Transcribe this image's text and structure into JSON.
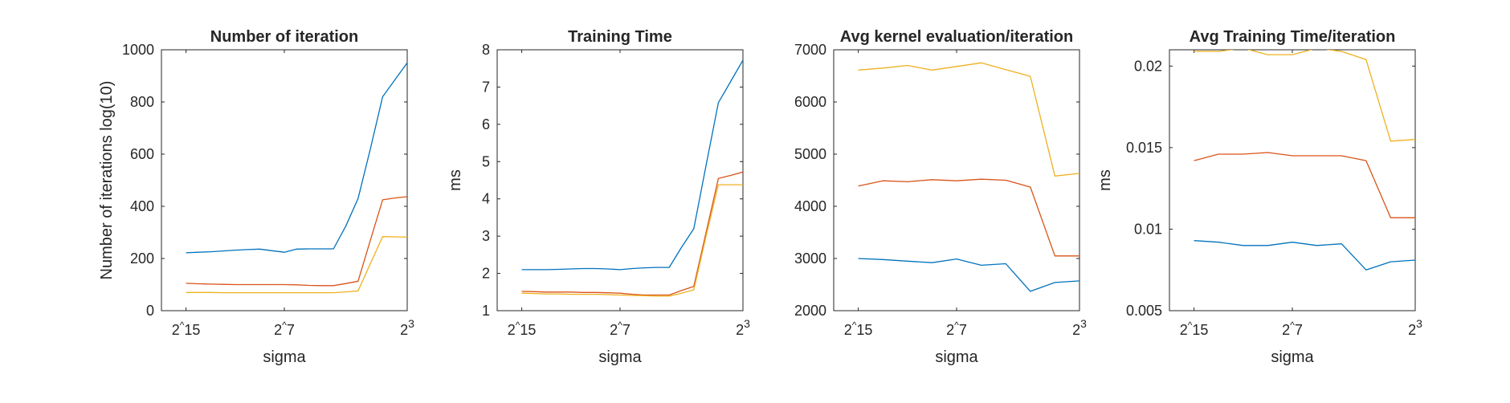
{
  "chart_data": [
    {
      "type": "line",
      "title": "Number of iteration",
      "xlabel": "sigma",
      "ylabel": "Number of iterations log(10)",
      "xlim": [
        -17,
        3
      ],
      "ylim": [
        0,
        1000
      ],
      "yticks": [
        "0",
        "200",
        "400",
        "600",
        "800",
        "1000"
      ],
      "xticks": [
        {
          "value": -15,
          "base": "2",
          "sep": "^",
          "exp": "15",
          "style": "caret"
        },
        {
          "value": -7,
          "base": "2",
          "sep": "^",
          "exp": "7",
          "style": "caret"
        },
        {
          "value": 3,
          "base": "2",
          "exp": "3",
          "style": "superscript"
        }
      ],
      "grid": false,
      "x": [
        -15,
        -14,
        -13,
        -12,
        -11,
        -10,
        -9,
        -8,
        -7,
        -6,
        -5,
        -4,
        -3,
        -2,
        -1,
        0,
        1,
        2,
        3
      ],
      "series": [
        {
          "color": "#0072BD",
          "values": [
            222,
            224,
            226,
            229,
            232,
            234,
            236,
            230,
            224,
            236,
            237,
            237,
            237,
            324,
            430,
            620,
            820,
            885,
            950
          ]
        },
        {
          "color": "#D95319",
          "values": [
            105,
            103,
            102,
            101,
            100,
            100,
            100,
            100,
            100,
            99,
            97,
            96,
            96,
            104,
            113,
            270,
            425,
            432,
            437
          ]
        },
        {
          "color": "#EDB120",
          "values": [
            70,
            70,
            70,
            69,
            69,
            69,
            69,
            69,
            69,
            69,
            69,
            69,
            69,
            72,
            76,
            180,
            284,
            283,
            282
          ]
        }
      ]
    },
    {
      "type": "line",
      "title": "Training Time",
      "xlabel": "sigma",
      "ylabel": "ms",
      "xlim": [
        -17,
        3
      ],
      "ylim": [
        1,
        8
      ],
      "yticks": [
        "1",
        "2",
        "3",
        "4",
        "5",
        "6",
        "7",
        "8"
      ],
      "xticks": [
        {
          "value": -15,
          "base": "2",
          "sep": "^",
          "exp": "15",
          "style": "caret"
        },
        {
          "value": -7,
          "base": "2",
          "sep": "^",
          "exp": "7",
          "style": "caret"
        },
        {
          "value": 3,
          "base": "2",
          "exp": "3",
          "style": "superscript"
        }
      ],
      "grid": false,
      "x": [
        -15,
        -14,
        -13,
        -12,
        -11,
        -10,
        -9,
        -8,
        -7,
        -6,
        -5,
        -4,
        -3,
        -2,
        -1,
        0,
        1,
        2,
        3
      ],
      "series": [
        {
          "color": "#0072BD",
          "values": [
            2.1,
            2.1,
            2.1,
            2.11,
            2.12,
            2.13,
            2.13,
            2.12,
            2.1,
            2.13,
            2.15,
            2.16,
            2.16,
            2.7,
            3.2,
            4.9,
            6.58,
            7.15,
            7.72
          ]
        },
        {
          "color": "#D95319",
          "values": [
            1.52,
            1.51,
            1.5,
            1.5,
            1.5,
            1.49,
            1.49,
            1.48,
            1.47,
            1.44,
            1.42,
            1.42,
            1.42,
            1.54,
            1.65,
            3.1,
            4.55,
            4.63,
            4.72
          ]
        },
        {
          "color": "#EDB120",
          "values": [
            1.47,
            1.46,
            1.45,
            1.45,
            1.44,
            1.44,
            1.44,
            1.43,
            1.42,
            1.41,
            1.4,
            1.39,
            1.39,
            1.47,
            1.56,
            3.0,
            4.38,
            4.38,
            4.38
          ]
        }
      ]
    },
    {
      "type": "line",
      "title": "Avg kernel evaluation/iteration",
      "xlabel": "sigma",
      "ylabel": "",
      "xlim": [
        -17,
        3
      ],
      "ylim": [
        2000,
        7000
      ],
      "yticks": [
        "2000",
        "3000",
        "4000",
        "5000",
        "6000",
        "7000"
      ],
      "xticks": [
        {
          "value": -15,
          "base": "2",
          "sep": "^",
          "exp": "15",
          "style": "caret"
        },
        {
          "value": -7,
          "base": "2",
          "sep": "^",
          "exp": "7",
          "style": "caret"
        },
        {
          "value": 3,
          "base": "2",
          "exp": "3",
          "style": "superscript"
        }
      ],
      "grid": false,
      "x": [
        -15,
        -13,
        -11,
        -9,
        -7,
        -5,
        -3,
        -1,
        1,
        3
      ],
      "series": [
        {
          "color": "#0072BD",
          "values": [
            3000,
            2980,
            2950,
            2920,
            2990,
            2870,
            2900,
            2370,
            2540,
            2570
          ]
        },
        {
          "color": "#D95319",
          "values": [
            4390,
            4490,
            4470,
            4510,
            4490,
            4520,
            4500,
            4370,
            3050,
            3050
          ]
        },
        {
          "color": "#EDB120",
          "values": [
            6610,
            6650,
            6700,
            6610,
            6680,
            6750,
            6620,
            6490,
            4580,
            4630
          ]
        }
      ]
    },
    {
      "type": "line",
      "title": "Avg Training Time/iteration",
      "xlabel": "sigma",
      "ylabel": "ms",
      "xlim": [
        -17,
        3
      ],
      "ylim": [
        0.005,
        0.021
      ],
      "yticks": [
        "0.005",
        "0.01",
        "0.015",
        "0.02"
      ],
      "ytick_values": [
        0.005,
        0.01,
        0.015,
        0.02
      ],
      "xticks": [
        {
          "value": -15,
          "base": "2",
          "sep": "^",
          "exp": "15",
          "style": "caret"
        },
        {
          "value": -7,
          "base": "2",
          "sep": "^",
          "exp": "7",
          "style": "caret"
        },
        {
          "value": 3,
          "base": "2",
          "exp": "3",
          "style": "superscript"
        }
      ],
      "grid": false,
      "x": [
        -15,
        -13,
        -11,
        -9,
        -7,
        -5,
        -3,
        -1,
        1,
        3
      ],
      "series": [
        {
          "color": "#0072BD",
          "values": [
            0.0093,
            0.0092,
            0.009,
            0.009,
            0.0092,
            0.009,
            0.0091,
            0.0075,
            0.008,
            0.0081
          ]
        },
        {
          "color": "#D95319",
          "values": [
            0.0142,
            0.0146,
            0.0146,
            0.0147,
            0.0145,
            0.0145,
            0.0145,
            0.0142,
            0.0107,
            0.0107
          ]
        },
        {
          "color": "#EDB120",
          "values": [
            0.0209,
            0.0209,
            0.0211,
            0.0207,
            0.0207,
            0.0211,
            0.0209,
            0.0204,
            0.0154,
            0.0155
          ]
        }
      ]
    }
  ]
}
